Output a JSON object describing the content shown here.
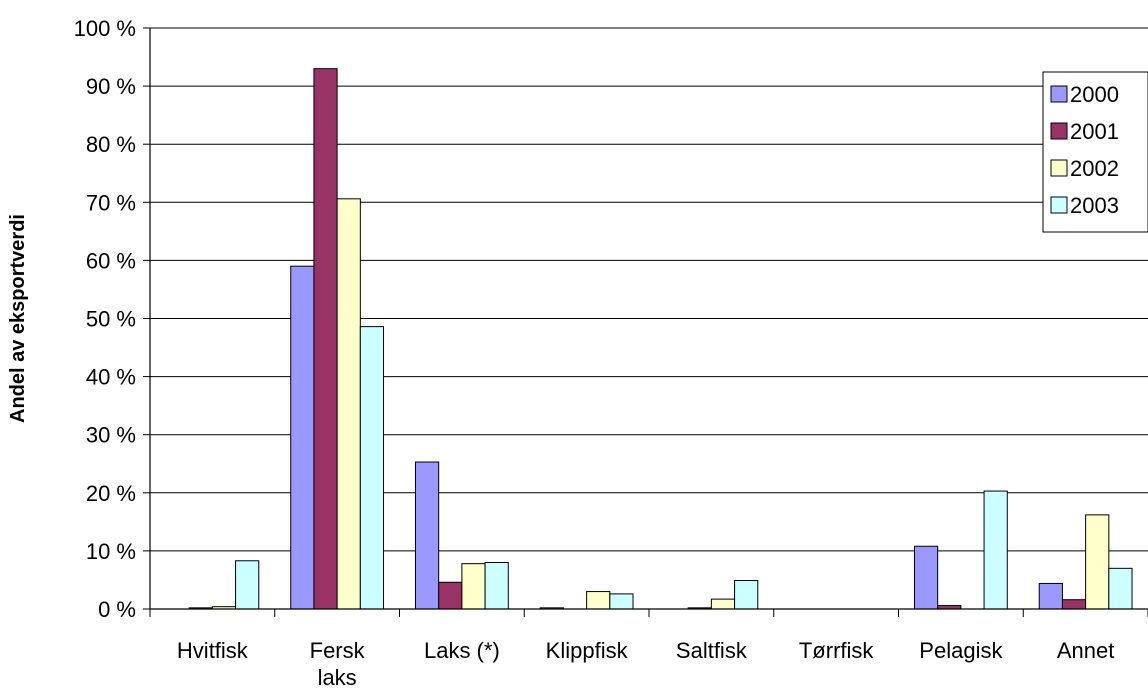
{
  "chart_data": {
    "type": "bar",
    "title": "",
    "xlabel": "",
    "ylabel": "Andel av eksportverdi",
    "ylim": [
      0,
      100
    ],
    "yticks": [
      "0 %",
      "10 %",
      "20 %",
      "30 %",
      "40 %",
      "50 %",
      "60 %",
      "70 %",
      "80 %",
      "90 %",
      "100 %"
    ],
    "categories": [
      [
        "Hvitfisk"
      ],
      [
        "Fersk",
        "laks"
      ],
      [
        "Laks (*)"
      ],
      [
        "Klippfisk"
      ],
      [
        "Saltfisk"
      ],
      [
        "Tørrfisk"
      ],
      [
        "Pelagisk"
      ],
      [
        "Annet"
      ]
    ],
    "series": [
      {
        "name": "2000",
        "color": "#9999ff",
        "values": [
          0,
          59,
          25.3,
          0.2,
          0,
          0,
          10.8,
          4.4
        ]
      },
      {
        "name": "2001",
        "color": "#993366",
        "values": [
          0.2,
          93,
          4.6,
          0,
          0.2,
          0,
          0.6,
          1.6
        ]
      },
      {
        "name": "2002",
        "color": "#ffffcc",
        "values": [
          0.4,
          70.6,
          7.8,
          3,
          1.7,
          0,
          0,
          16.2
        ]
      },
      {
        "name": "2003",
        "color": "#ccffff",
        "values": [
          8.3,
          48.6,
          8,
          2.6,
          4.9,
          0,
          20.3,
          7
        ]
      }
    ],
    "grid": true,
    "legend_position": "top-right"
  }
}
